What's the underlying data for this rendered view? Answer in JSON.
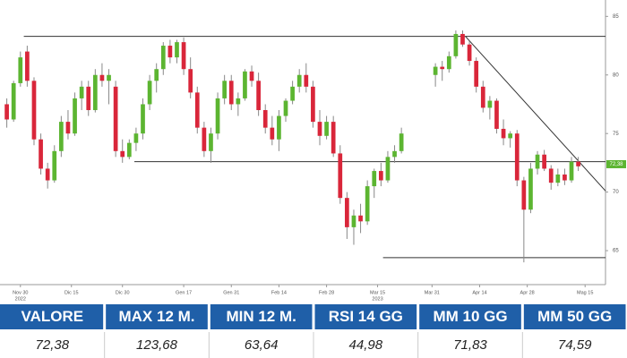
{
  "chart_data": {
    "type": "candlestick",
    "x": [
      -4,
      -2,
      0,
      2,
      4,
      6,
      8,
      10,
      12,
      14,
      16,
      18,
      20,
      22,
      24,
      26,
      28,
      30,
      32,
      34,
      36,
      38,
      40,
      42,
      44,
      46,
      48,
      50,
      52,
      54,
      56,
      58,
      60,
      62,
      64,
      66,
      68,
      70,
      72,
      74,
      76,
      78,
      80,
      82,
      84,
      86,
      88,
      90,
      92,
      94,
      96,
      98,
      100,
      102,
      104,
      106,
      108,
      110,
      112,
      122,
      124,
      126,
      128,
      130,
      132,
      134,
      136,
      138,
      140,
      142,
      144,
      146,
      148,
      150,
      152,
      154,
      156,
      158,
      160,
      162,
      164
    ],
    "open": [
      77.5,
      76.2,
      79.3,
      82,
      79.5,
      74.5,
      72,
      71,
      73.5,
      76,
      75,
      78,
      79,
      77,
      80,
      79.5,
      79,
      73.5,
      73,
      74.2,
      75,
      77.5,
      79.5,
      80.5,
      82.5,
      81.5,
      82.8,
      80.5,
      78.5,
      75.5,
      73.5,
      75,
      78,
      79.5,
      77.5,
      78,
      80.3,
      79.5,
      77,
      75.5,
      74.5,
      76.5,
      77.8,
      79,
      80,
      79,
      76,
      74.8,
      76,
      73.3,
      69.5,
      67,
      68,
      67.5,
      70.5,
      71.8,
      71,
      73,
      73.5,
      80,
      80.7,
      80.5,
      81.6,
      83.5,
      82.6,
      81.2,
      79,
      77.2,
      77.8,
      75.4,
      74.6,
      75,
      71,
      68.5,
      72,
      73.2,
      72,
      70.8,
      71.5,
      71,
      72.6
    ],
    "high": [
      78,
      79.5,
      82,
      82.5,
      79.8,
      75,
      72.5,
      74,
      76.5,
      77,
      78.5,
      79.5,
      79.5,
      80.5,
      81,
      80.5,
      79.5,
      74.5,
      74.5,
      75.5,
      78,
      80,
      81,
      82.8,
      83,
      83,
      83.2,
      81.5,
      79,
      76,
      75.5,
      78.5,
      80,
      80,
      78.5,
      80.5,
      80.8,
      80.2,
      77.5,
      76.5,
      77,
      78,
      79.5,
      80.5,
      81,
      79.5,
      77,
      76.5,
      76.5,
      74,
      70,
      68.5,
      69,
      71,
      72,
      72.5,
      73.5,
      74,
      75.5,
      81,
      81.2,
      82,
      83.8,
      83.8,
      82.9,
      81.5,
      79.5,
      78.2,
      78,
      76.2,
      75.2,
      75.3,
      71.3,
      72.5,
      73.5,
      73.6,
      72.3,
      72,
      72,
      73,
      73
    ],
    "low": [
      75.5,
      76,
      79,
      79,
      74,
      71.5,
      70.3,
      70.8,
      73,
      74.5,
      74.8,
      77,
      76.5,
      76.8,
      79,
      77.5,
      73,
      72.5,
      72.8,
      73.5,
      74.5,
      77,
      78.5,
      80,
      81,
      81,
      80,
      78,
      75,
      73,
      72.5,
      74.5,
      77.5,
      77,
      76.5,
      77.8,
      79,
      76.5,
      75,
      74,
      73.5,
      76,
      77.5,
      78.5,
      78.5,
      75.5,
      74,
      74.5,
      73,
      69,
      66,
      65.5,
      66.5,
      67.2,
      69.5,
      70.5,
      70.8,
      72.5,
      73.3,
      79,
      79.5,
      80.2,
      81.4,
      82.4,
      80.8,
      78.5,
      76.8,
      76.2,
      75,
      74,
      73.8,
      70.5,
      64,
      68.2,
      71.5,
      71.8,
      70.2,
      70.5,
      70.6,
      70.8,
      71.8
    ],
    "close": [
      76.2,
      79.3,
      81.5,
      79.5,
      74.5,
      72,
      71,
      73.5,
      76,
      75,
      78,
      79,
      77,
      80,
      79.5,
      80,
      73.5,
      73,
      74.2,
      75,
      77.5,
      79.5,
      80.5,
      82.5,
      81.5,
      82.8,
      80.5,
      78.5,
      75.5,
      73.5,
      75,
      78,
      79.5,
      77.5,
      78,
      80.3,
      79.5,
      77,
      75.5,
      74.5,
      76.5,
      77.8,
      79,
      80,
      79,
      76,
      74.8,
      76,
      73.3,
      69.5,
      67,
      68,
      67.5,
      70.5,
      71.8,
      71,
      73,
      73.5,
      75,
      80.7,
      80.5,
      81.6,
      83.5,
      82.6,
      81.2,
      79,
      77.2,
      77.8,
      75.4,
      74.6,
      75,
      71,
      68.5,
      72,
      73.2,
      72,
      70.8,
      71.5,
      71,
      72.6,
      72.2
    ],
    "up_color": "#5cb531",
    "down_color": "#d9263a",
    "xlim": [
      -6,
      172
    ],
    "ylim": [
      62.1,
      86.4
    ],
    "xticks": [
      {
        "value": 0,
        "label": "Nov 30"
      },
      {
        "value": 15,
        "label": "Dic 15"
      },
      {
        "value": 30,
        "label": "Dic 30"
      },
      {
        "value": 48,
        "label": "Gen 17"
      },
      {
        "value": 62,
        "label": "Gen 31"
      },
      {
        "value": 76,
        "label": "Feb 14"
      },
      {
        "value": 90,
        "label": "Feb 28"
      },
      {
        "value": 105,
        "label": "Mar 15"
      },
      {
        "value": 121,
        "label": "Mar 31"
      },
      {
        "value": 135,
        "label": "Apr 14"
      },
      {
        "value": 149,
        "label": "Apr 28"
      },
      {
        "value": 166,
        "label": "Mag 15"
      }
    ],
    "year_labels": [
      {
        "value": 0,
        "label": "2022"
      },
      {
        "value": 105,
        "label": "2023"
      }
    ],
    "yticks": [
      65,
      70,
      75,
      80,
      85
    ],
    "trendlines": [
      {
        "x": [
          1,
          172
        ],
        "y": [
          83.3,
          83.3
        ]
      },
      {
        "x": [
          33.5,
          172
        ],
        "y": [
          72.6,
          72.6
        ]
      },
      {
        "x": [
          106.6,
          172
        ],
        "y": [
          64.4,
          64.4
        ]
      },
      {
        "x": [
          130.8,
          172
        ],
        "y": [
          83.3,
          70.1
        ]
      }
    ],
    "last_price": {
      "value": 72.38,
      "label": "72,38"
    }
  },
  "table": {
    "headers": [
      "VALORE",
      "MAX 12 M.",
      "MIN 12 M.",
      "RSI 14 GG",
      "MM 10 GG",
      "MM 50 GG"
    ],
    "values": [
      "72,38",
      "123,68",
      "63,64",
      "44,98",
      "71,83",
      "74,59"
    ]
  }
}
